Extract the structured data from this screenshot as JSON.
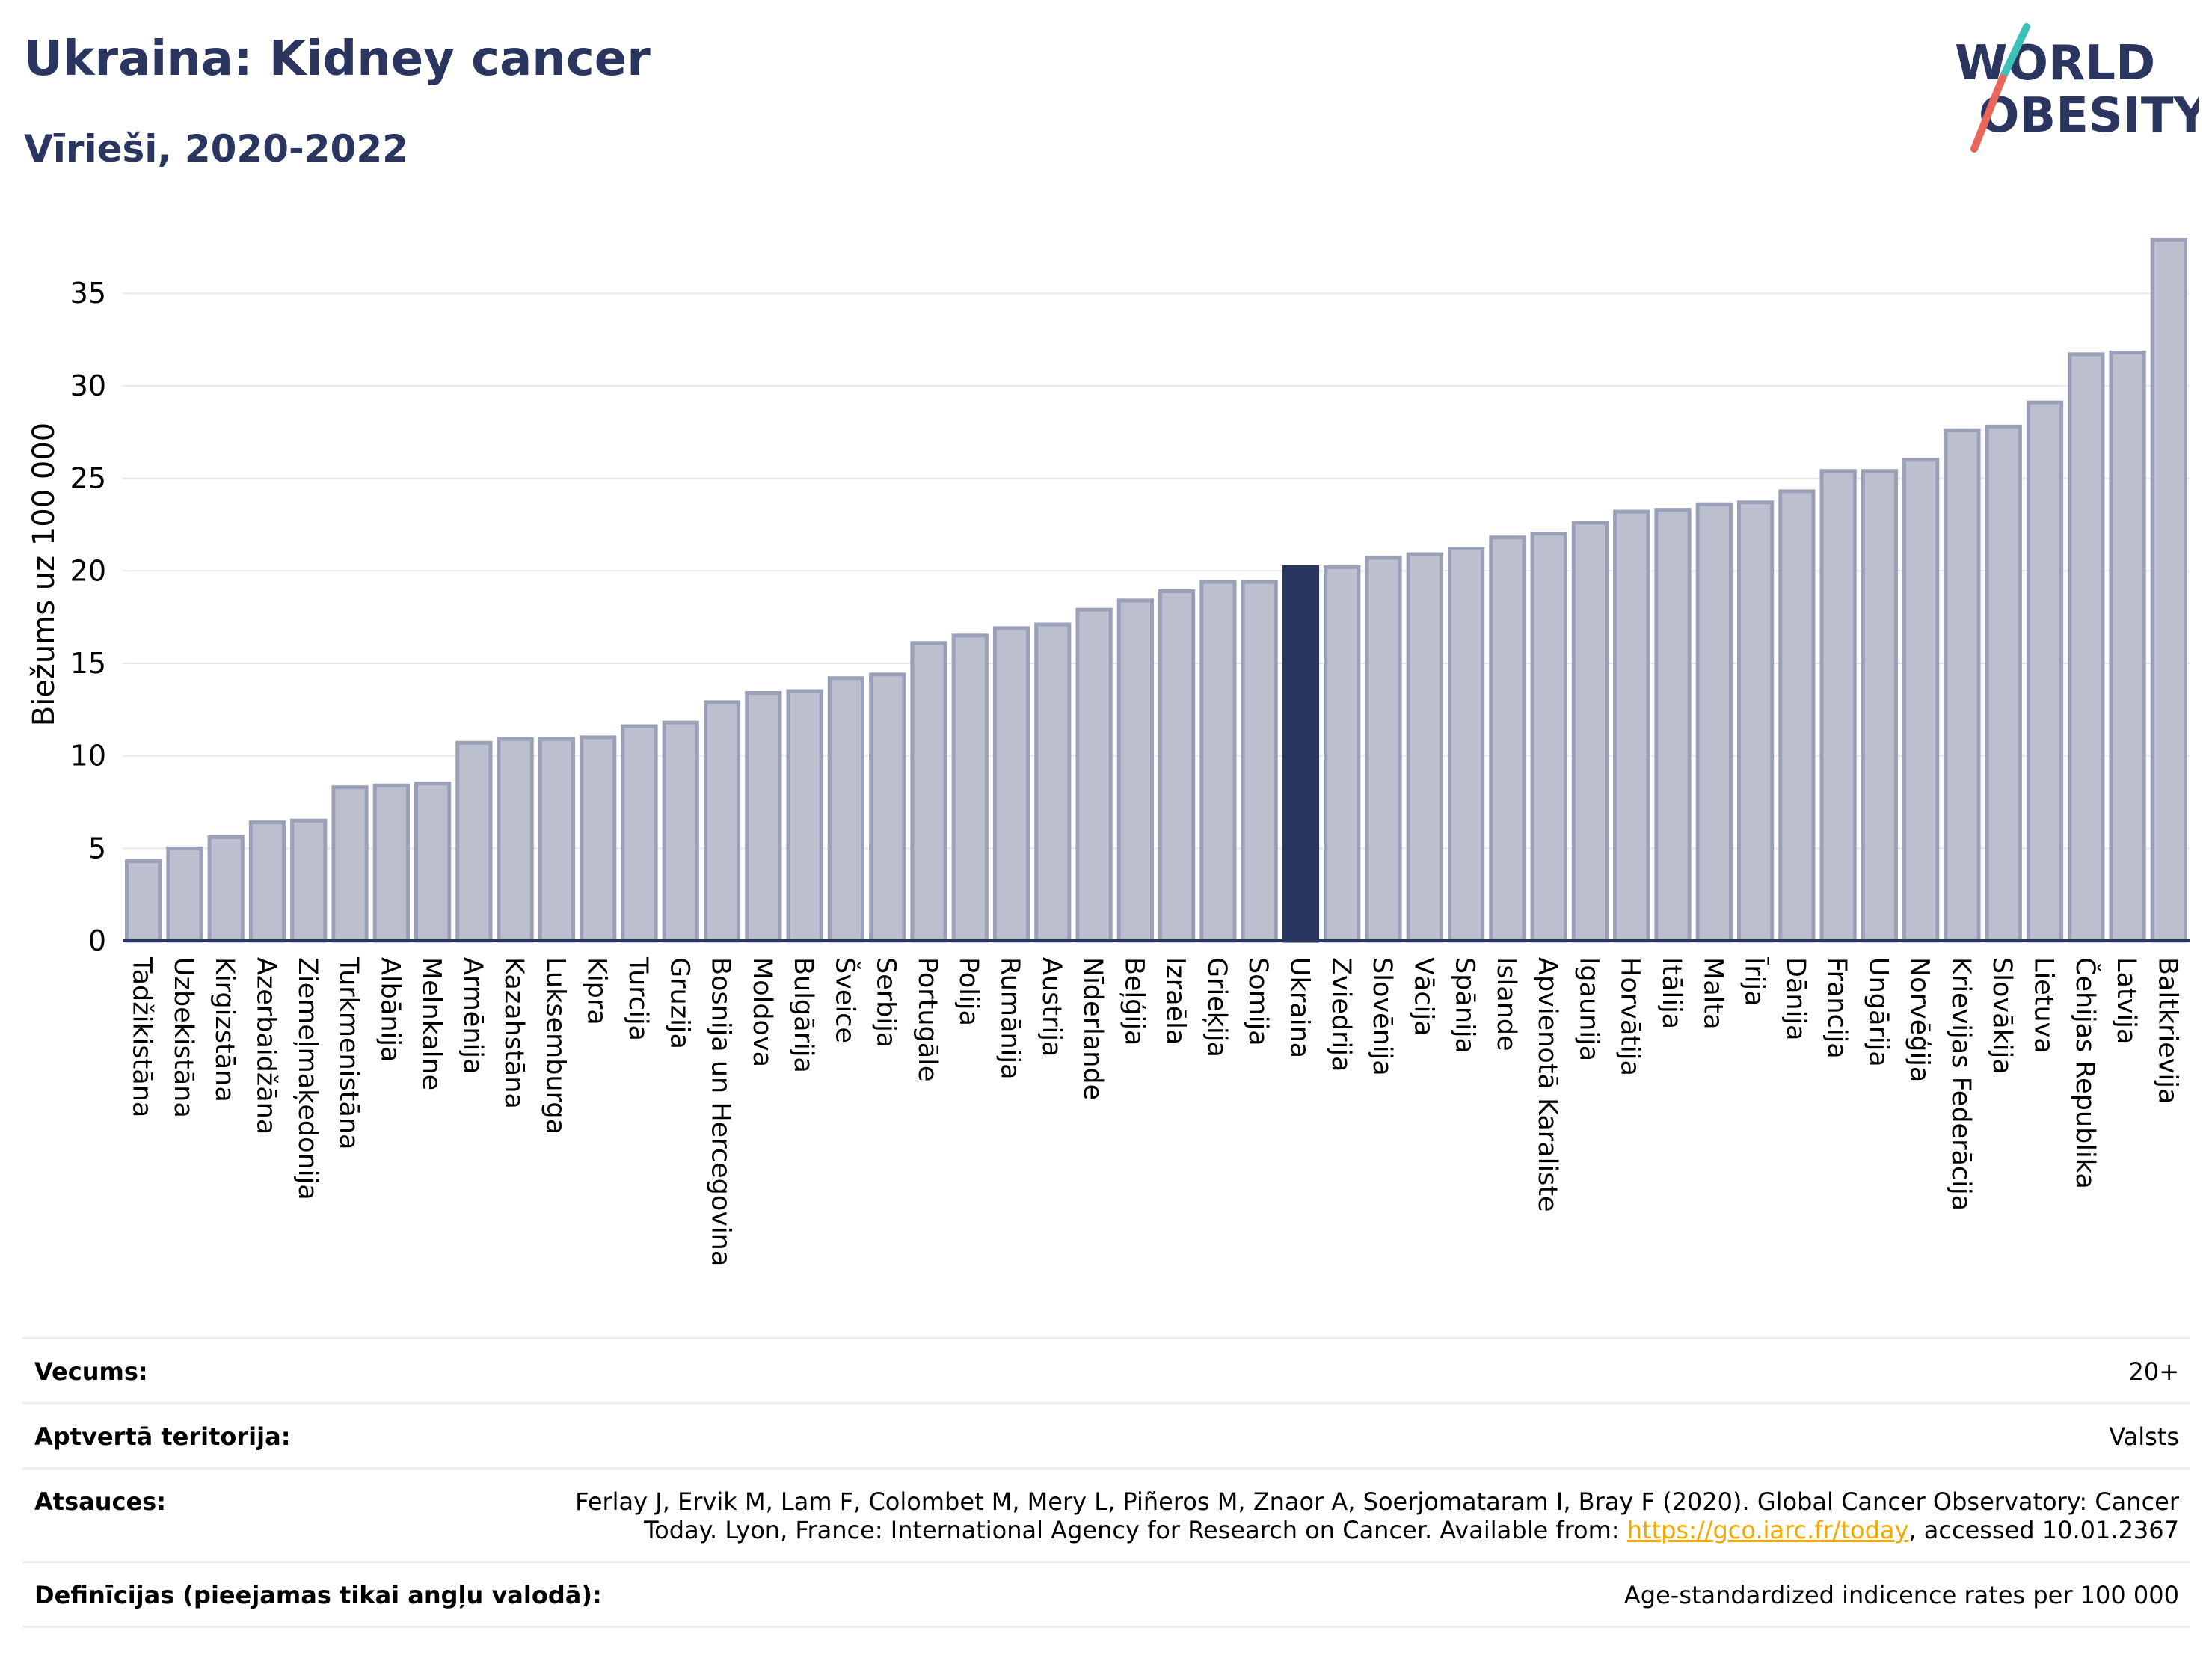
{
  "header": {
    "title": "Ukraina: Kidney cancer",
    "subtitle": "Vīrieši, 2020-2022"
  },
  "logo": {
    "line1": "WORLD",
    "line2": "OBESITY",
    "accent_colors": [
      "#3cc1b7",
      "#e8665a"
    ]
  },
  "colors": {
    "bar": "#bcc0ce",
    "bar_border": "#9aa0b8",
    "highlight": "#2a3560",
    "grid": "#e6e8ee",
    "text": "#2a3560"
  },
  "chart_data": {
    "type": "bar",
    "ylabel": "Biežums uz 100 000",
    "ylim": [
      0,
      38
    ],
    "yticks": [
      0,
      5,
      10,
      15,
      20,
      25,
      30,
      35
    ],
    "grid": true,
    "highlight": "Ukraina",
    "categories": [
      "Tadžikistāna",
      "Uzbekistāna",
      "Kirgizstāna",
      "Azerbaidžāna",
      "Ziemeļmaķedonija",
      "Turkmenistāna",
      "Albānija",
      "Melnkalne",
      "Armēnija",
      "Kazahstāna",
      "Luksemburga",
      "Kipra",
      "Turcija",
      "Gruzija",
      "Bosnija un Hercegovina",
      "Moldova",
      "Bulgārija",
      "Šveice",
      "Serbija",
      "Portugāle",
      "Polija",
      "Rumānija",
      "Austrija",
      "Nīderlande",
      "Beļģija",
      "Izraēla",
      "Grieķija",
      "Somija",
      "Ukraina",
      "Zviedrija",
      "Slovēnija",
      "Vācija",
      "Spānija",
      "Islande",
      "Apvienotā Karaliste",
      "Igaunija",
      "Horvātija",
      "Itālija",
      "Malta",
      "Īrija",
      "Dānija",
      "Francija",
      "Ungārija",
      "Norvēģija",
      "Krievijas Federācija",
      "Slovākija",
      "Lietuva",
      "Čehijas Republika",
      "Latvija",
      "Baltkrievija"
    ],
    "values": [
      4.3,
      5.0,
      5.6,
      6.4,
      6.5,
      8.3,
      8.4,
      8.5,
      10.7,
      10.9,
      10.9,
      11.0,
      11.6,
      11.8,
      12.9,
      13.4,
      13.5,
      14.2,
      14.4,
      16.1,
      16.5,
      16.9,
      17.1,
      17.9,
      18.4,
      18.9,
      19.4,
      19.4,
      20.2,
      20.2,
      20.7,
      20.9,
      21.2,
      21.8,
      22.0,
      22.6,
      23.2,
      23.3,
      23.6,
      23.7,
      24.3,
      25.4,
      25.4,
      26.0,
      27.6,
      27.8,
      29.1,
      31.7,
      31.8,
      37.9
    ]
  },
  "info": {
    "rows": [
      {
        "label": "Vecums:",
        "value": "20+"
      },
      {
        "label": "Aptvertā teritorija:",
        "value": "Valsts"
      },
      {
        "label": "Atsauces:",
        "value_line1": "Ferlay J, Ervik M, Lam F, Colombet M, Mery L, Piñeros M, Znaor A, Soerjomataram I, Bray F (2020). Global Cancer Observatory: Cancer",
        "value_line2_pre": "Today. Lyon, France: International Agency for Research on Cancer. Available from: ",
        "link": "https://gco.iarc.fr/today",
        "value_line2_post": ", accessed 10.01.2367"
      },
      {
        "label": "Definīcijas (pieejamas tikai angļu valodā):",
        "value": "Age-standardized indicence rates per 100 000"
      }
    ]
  }
}
